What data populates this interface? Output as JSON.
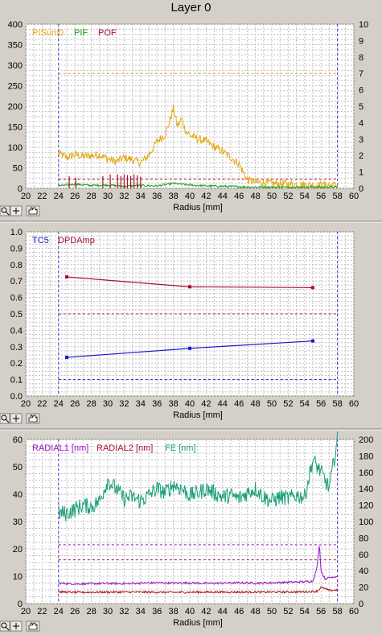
{
  "window": {
    "title": "Layer 0"
  },
  "colors": {
    "PISum0": "#e6a817",
    "PIF": "#1a9c1a",
    "POF": "#a8102a",
    "TC5": "#1a1acc",
    "DPDAmp": "#a8102a",
    "RADIAL1": "#9a10c8",
    "RADIAL2": "#b0102a",
    "FE": "#1a9e7a",
    "bounds": "#5a28e0",
    "grid": "#c0c0c0"
  },
  "toolbar_icons": [
    "zoom-icon",
    "crosshair-icon",
    "pan-hand-icon"
  ],
  "chart_data": [
    {
      "type": "line",
      "xlabel": "Radius [mm]",
      "xlim": [
        20,
        60
      ],
      "x_ticks": [
        "20",
        "22",
        "24",
        "26",
        "28",
        "30",
        "32",
        "34",
        "36",
        "38",
        "40",
        "42",
        "44",
        "46",
        "48",
        "50",
        "52",
        "54",
        "56",
        "58",
        "60"
      ],
      "ylim": [
        0,
        400
      ],
      "y_ticks": [
        "0",
        "50",
        "100",
        "150",
        "200",
        "250",
        "300",
        "350",
        "400"
      ],
      "y2lim": [
        0,
        10
      ],
      "y2_ticks": [
        "0",
        "1",
        "2",
        "3",
        "4",
        "5",
        "6",
        "7",
        "8",
        "9",
        "10"
      ],
      "legend": [
        "PISum0",
        "PIF",
        "POF"
      ],
      "vlines": [
        24,
        58
      ],
      "hlines": [
        {
          "series": "PISum0",
          "value": 280
        },
        {
          "series": "POF",
          "value": 22
        }
      ],
      "series": [
        {
          "name": "PISum0",
          "axis": "left",
          "style": "noisy",
          "x": [
            24,
            25,
            26,
            27,
            28,
            29,
            30,
            31,
            32,
            33,
            34,
            35,
            36,
            37,
            37.5,
            38,
            38.5,
            39,
            39.5,
            40,
            41,
            42,
            43,
            44,
            45,
            46,
            46.5,
            47,
            48,
            50,
            52,
            54,
            56,
            58
          ],
          "y": [
            85,
            75,
            82,
            78,
            80,
            82,
            72,
            65,
            75,
            70,
            62,
            80,
            115,
            130,
            160,
            195,
            150,
            170,
            140,
            130,
            120,
            115,
            100,
            90,
            75,
            60,
            40,
            20,
            15,
            12,
            10,
            9,
            8,
            7
          ]
        },
        {
          "name": "PIF",
          "axis": "left",
          "style": "noisy",
          "x": [
            24,
            26,
            28,
            30,
            32,
            34,
            36,
            38,
            40,
            42,
            44,
            46,
            48,
            50,
            52,
            54,
            56,
            58
          ],
          "y": [
            6,
            10,
            7,
            8,
            5,
            7,
            6,
            12,
            8,
            6,
            5,
            4,
            3,
            3,
            3,
            3,
            3,
            3
          ]
        },
        {
          "name": "POF",
          "axis": "left",
          "style": "spikes",
          "x": [
            25.3,
            26.1,
            29.4,
            30.3,
            31.2,
            31.6,
            32.0,
            32.4,
            32.8,
            33.2,
            33.6,
            34.0
          ],
          "y": [
            30,
            26,
            30,
            34,
            34,
            30,
            34,
            32,
            30,
            34,
            32,
            28
          ]
        }
      ]
    },
    {
      "type": "line",
      "xlabel": "Radius [mm]",
      "xlim": [
        20,
        60
      ],
      "x_ticks": [
        "20",
        "22",
        "24",
        "26",
        "28",
        "30",
        "32",
        "34",
        "36",
        "38",
        "40",
        "42",
        "44",
        "46",
        "48",
        "50",
        "52",
        "54",
        "56",
        "58",
        "60"
      ],
      "ylim": [
        0,
        1
      ],
      "y_ticks": [
        "0.0",
        "0.1",
        "0.2",
        "0.3",
        "0.4",
        "0.5",
        "0.6",
        "0.7",
        "0.8",
        "0.9",
        "1.0"
      ],
      "legend": [
        "TC5",
        "DPDAmp"
      ],
      "vlines": [
        24,
        58
      ],
      "hlines": [
        {
          "series": "TC5",
          "value": 0.1
        },
        {
          "series": "DPDAmp",
          "value": 0.5
        }
      ],
      "series": [
        {
          "name": "TC5",
          "axis": "left",
          "style": "markers",
          "x": [
            25,
            40,
            55
          ],
          "y": [
            0.235,
            0.29,
            0.335
          ]
        },
        {
          "name": "DPDAmp",
          "axis": "left",
          "style": "markers",
          "x": [
            25,
            40,
            55
          ],
          "y": [
            0.725,
            0.665,
            0.66
          ]
        }
      ]
    },
    {
      "type": "line",
      "xlabel": "Radius [mm]",
      "xlim": [
        20,
        60
      ],
      "x_ticks": [
        "20",
        "22",
        "24",
        "26",
        "28",
        "30",
        "32",
        "34",
        "36",
        "38",
        "40",
        "42",
        "44",
        "46",
        "48",
        "50",
        "52",
        "54",
        "56",
        "58",
        "60"
      ],
      "ylim": [
        0,
        60
      ],
      "y_ticks": [
        "0",
        "10",
        "20",
        "30",
        "40",
        "50",
        "60"
      ],
      "y2lim": [
        0,
        200
      ],
      "y2_ticks": [
        "0",
        "20",
        "40",
        "60",
        "80",
        "100",
        "120",
        "140",
        "160",
        "180",
        "200"
      ],
      "legend": [
        "RADIAL1 [nm]",
        "RADIAL2 [nm]",
        "FE [nm]"
      ],
      "vlines": [
        24,
        58
      ],
      "hlines": [
        {
          "series": "RADIAL1",
          "value": 21.5
        },
        {
          "series": "RADIAL2",
          "value": 16
        }
      ],
      "series": [
        {
          "name": "RADIAL1",
          "axis": "left",
          "style": "noisy",
          "x": [
            24,
            26,
            28,
            30,
            32,
            34,
            36,
            38,
            40,
            42,
            44,
            46,
            48,
            50,
            52,
            54,
            55,
            55.5,
            55.8,
            56,
            56.5,
            57,
            58
          ],
          "y": [
            7.5,
            7.2,
            7.3,
            7.4,
            7.3,
            7.5,
            7.6,
            7.5,
            7.6,
            7.4,
            7.5,
            7.6,
            7.5,
            7.6,
            7.8,
            8,
            8.2,
            13,
            22,
            12,
            9,
            9.5,
            10
          ]
        },
        {
          "name": "RADIAL2",
          "axis": "left",
          "style": "noisy",
          "x": [
            24,
            26,
            30,
            34,
            38,
            42,
            46,
            50,
            54,
            55.5,
            56,
            57,
            58
          ],
          "y": [
            4.3,
            4.1,
            4.2,
            4.2,
            4.1,
            4.2,
            4.2,
            4.2,
            4.3,
            4.5,
            6,
            4.8,
            5
          ]
        },
        {
          "name": "FE",
          "axis": "right",
          "style": "noisy",
          "x": [
            24,
            25,
            26,
            27,
            28,
            29,
            30,
            31,
            32,
            33,
            34,
            35,
            36,
            37,
            38,
            39,
            40,
            41,
            42,
            43,
            44,
            45,
            46,
            47,
            48,
            49,
            50,
            51,
            52,
            53,
            54,
            55,
            56,
            57,
            58
          ],
          "y": [
            110,
            110,
            115,
            120,
            118,
            125,
            150,
            140,
            128,
            130,
            125,
            132,
            140,
            135,
            145,
            140,
            132,
            135,
            140,
            135,
            130,
            132,
            128,
            135,
            140,
            130,
            125,
            130,
            128,
            132,
            130,
            175,
            160,
            140,
            200
          ]
        }
      ]
    }
  ]
}
